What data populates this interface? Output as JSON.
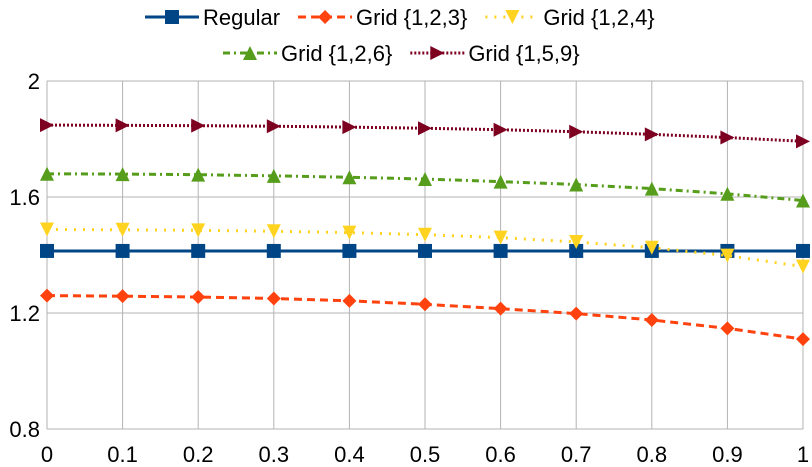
{
  "chart_data": {
    "type": "line",
    "title": "",
    "xlabel": "",
    "ylabel": "",
    "x": [
      0,
      0.1,
      0.2,
      0.3,
      0.4,
      0.5,
      0.6,
      0.7,
      0.8,
      0.9,
      1
    ],
    "xlim": [
      0,
      1
    ],
    "ylim": [
      0.8,
      2
    ],
    "x_ticks": [
      "0",
      "0.1",
      "0.2",
      "0.3",
      "0.4",
      "0.5",
      "0.6",
      "0.7",
      "0.8",
      "0.9",
      "1"
    ],
    "y_ticks": [
      0.8,
      1.2,
      1.6,
      2
    ],
    "y_tick_labels": [
      "0.8",
      "1.2",
      "1.6",
      "2"
    ],
    "grid": "vertical and horizontal major gridlines",
    "legend_position": "top",
    "series": [
      {
        "name": "Regular",
        "color": "#004586",
        "line": "solid",
        "marker": "square",
        "values": [
          1.414,
          1.414,
          1.414,
          1.414,
          1.414,
          1.414,
          1.414,
          1.414,
          1.414,
          1.414,
          1.414
        ]
      },
      {
        "name": "Grid {1,2,3}",
        "color": "#ff420e",
        "line": "dashed",
        "marker": "diamond",
        "values": [
          1.26,
          1.258,
          1.255,
          1.25,
          1.242,
          1.23,
          1.215,
          1.198,
          1.176,
          1.147,
          1.11
        ]
      },
      {
        "name": "Grid {1,2,4}",
        "color": "#ffd320",
        "line": "dotted",
        "marker": "triangle-down",
        "values": [
          1.488,
          1.487,
          1.485,
          1.482,
          1.477,
          1.47,
          1.46,
          1.445,
          1.425,
          1.398,
          1.36
        ]
      },
      {
        "name": "Grid {1,2,6}",
        "color": "#579d1c",
        "line": "dash-dot",
        "marker": "triangle-up",
        "values": [
          1.68,
          1.679,
          1.677,
          1.673,
          1.668,
          1.662,
          1.653,
          1.643,
          1.629,
          1.611,
          1.588
        ]
      },
      {
        "name": "Grid {1,5,9}",
        "color": "#7e0021",
        "line": "dense-dotted",
        "marker": "triangle-right",
        "values": [
          1.848,
          1.847,
          1.846,
          1.844,
          1.841,
          1.837,
          1.832,
          1.825,
          1.816,
          1.805,
          1.792
        ]
      }
    ]
  }
}
